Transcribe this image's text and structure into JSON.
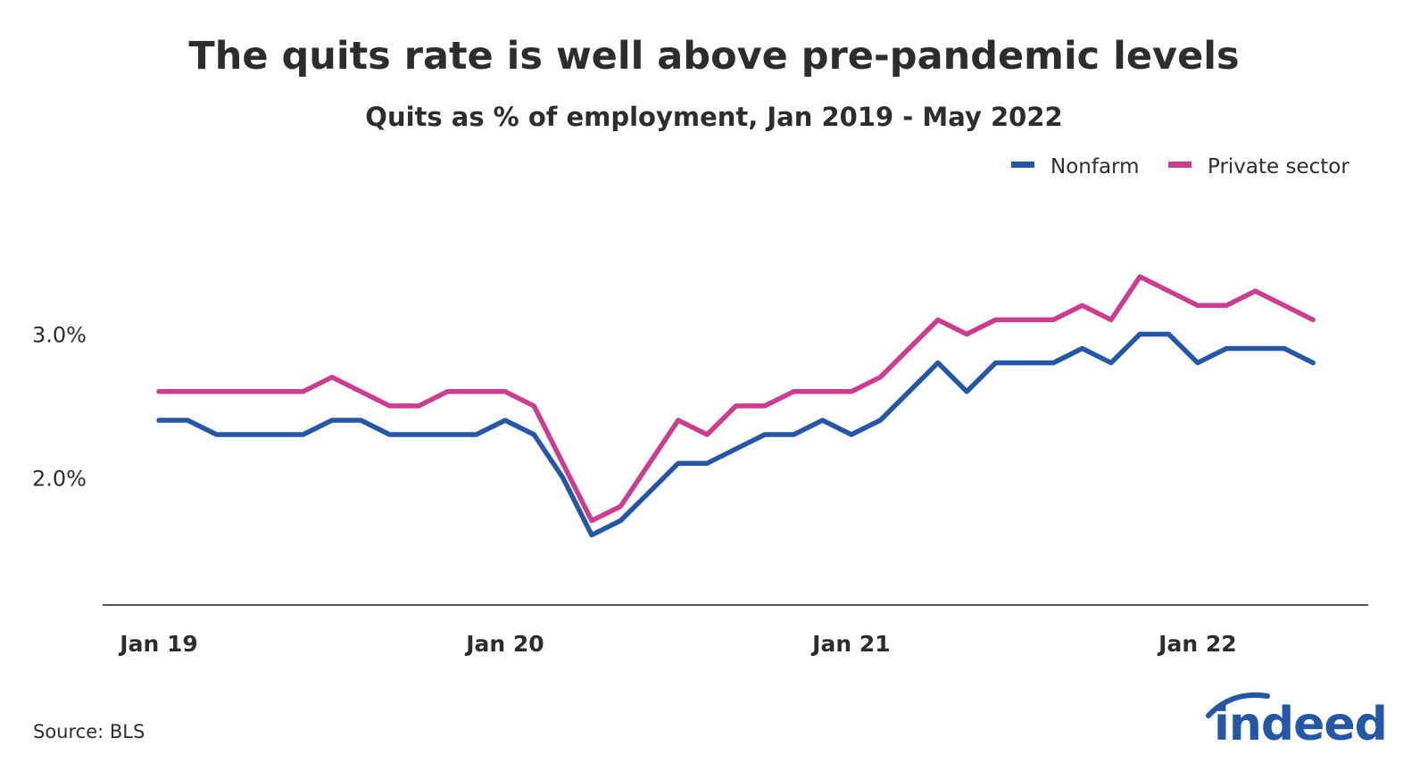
{
  "title": "The quits rate is well above pre-pandemic levels",
  "subtitle": "Quits as % of employment, Jan 2019 - May 2022",
  "source": "Source: BLS",
  "logo_text": "indeed",
  "colors": {
    "nonfarm": "#2557a7",
    "private": "#cc3d8f",
    "axis": "#555555",
    "text": "#2d2d2d"
  },
  "chart_data": {
    "type": "line",
    "title": "The quits rate is well above pre-pandemic levels",
    "subtitle": "Quits as % of employment, Jan 2019 - May 2022",
    "x_start": "2019-01",
    "x_end": "2022-05",
    "x_ticks": [
      {
        "label": "Jan 19",
        "month_index": 0
      },
      {
        "label": "Jan 20",
        "month_index": 12
      },
      {
        "label": "Jan 21",
        "month_index": 24
      },
      {
        "label": "Jan 22",
        "month_index": 36
      }
    ],
    "y_ticks": [
      {
        "label": "2.0%",
        "value": 2.0
      },
      {
        "label": "3.0%",
        "value": 3.0
      }
    ],
    "ylim": [
      1.15,
      3.55
    ],
    "grid": false,
    "legend_position": "top-right",
    "series": [
      {
        "name": "Nonfarm",
        "color": "#2557a7",
        "values": [
          2.4,
          2.4,
          2.3,
          2.3,
          2.3,
          2.3,
          2.4,
          2.4,
          2.3,
          2.3,
          2.3,
          2.3,
          2.4,
          2.3,
          2.0,
          1.6,
          1.7,
          1.9,
          2.1,
          2.1,
          2.2,
          2.3,
          2.3,
          2.4,
          2.3,
          2.4,
          2.6,
          2.8,
          2.6,
          2.8,
          2.8,
          2.8,
          2.9,
          2.8,
          3.0,
          3.0,
          2.8,
          2.9,
          2.9,
          2.9,
          2.8
        ]
      },
      {
        "name": "Private sector",
        "color": "#cc3d8f",
        "values": [
          2.6,
          2.6,
          2.6,
          2.6,
          2.6,
          2.6,
          2.7,
          2.6,
          2.5,
          2.5,
          2.6,
          2.6,
          2.6,
          2.5,
          2.1,
          1.7,
          1.8,
          2.1,
          2.4,
          2.3,
          2.5,
          2.5,
          2.6,
          2.6,
          2.6,
          2.7,
          2.9,
          3.1,
          3.0,
          3.1,
          3.1,
          3.1,
          3.2,
          3.1,
          3.4,
          3.3,
          3.2,
          3.2,
          3.3,
          3.2,
          3.1
        ]
      }
    ]
  }
}
